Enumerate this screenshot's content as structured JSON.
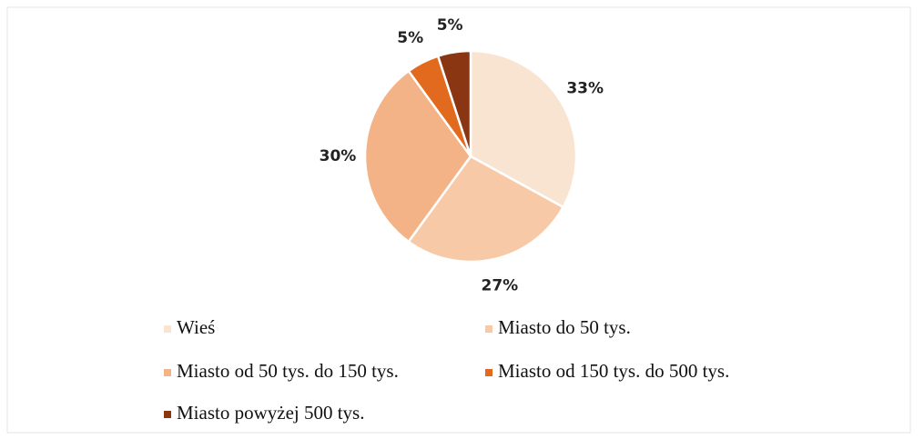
{
  "chart_data": {
    "type": "pie",
    "categories": [
      "Wieś",
      "Miasto do 50 tys.",
      "Miasto od 50 tys. do 150 tys.",
      "Miasto od 150 tys. do 500 tys.",
      "Miasto powyżej 500 tys."
    ],
    "values": [
      33,
      27,
      30,
      5,
      5
    ],
    "value_labels": [
      "33%",
      "27%",
      "30%",
      "5%",
      "5%"
    ],
    "colors": [
      "#f9e4d2",
      "#f7c9a6",
      "#f4b386",
      "#e26a1e",
      "#8a3612"
    ],
    "legend": "bottom"
  }
}
